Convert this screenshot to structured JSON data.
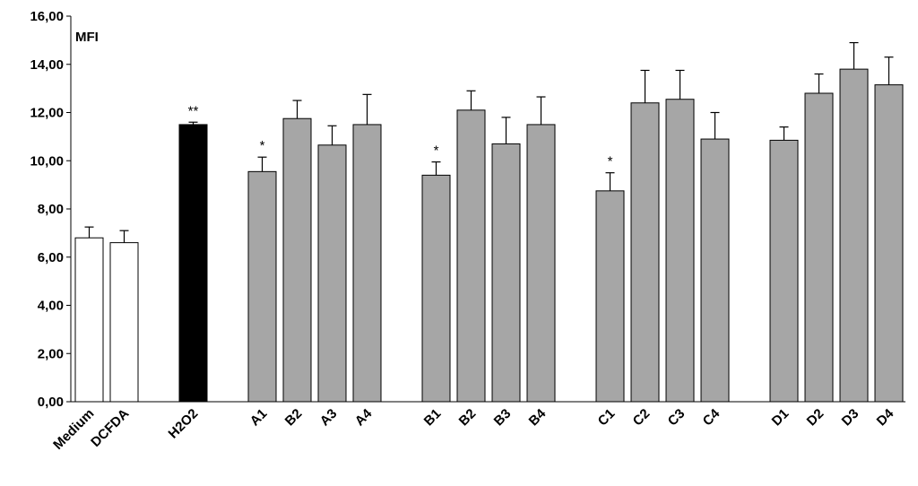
{
  "chart_data": {
    "type": "bar",
    "ylabel": "MFI",
    "ylim": [
      0,
      16
    ],
    "ytick_labels": [
      "0,00",
      "2,00",
      "4,00",
      "6,00",
      "8,00",
      "10,00",
      "12,00",
      "14,00",
      "16,00"
    ],
    "ytick_values": [
      0,
      2,
      4,
      6,
      8,
      10,
      12,
      14,
      16
    ],
    "categories": [
      "Medium",
      "DCFDA",
      "H2O2",
      "A1",
      "B2",
      "A3",
      "A4",
      "B1",
      "B2",
      "B3",
      "B4",
      "C1",
      "C2",
      "C3",
      "C4",
      "D1",
      "D2",
      "D3",
      "D4"
    ],
    "groups": [
      0,
      0,
      1,
      2,
      2,
      2,
      2,
      3,
      3,
      3,
      3,
      4,
      4,
      4,
      4,
      5,
      5,
      5,
      5
    ],
    "values": [
      6.8,
      6.6,
      11.5,
      9.55,
      11.75,
      10.65,
      11.5,
      9.4,
      12.1,
      10.7,
      11.5,
      8.75,
      12.4,
      12.55,
      10.9,
      10.85,
      12.8,
      13.8,
      13.15
    ],
    "errors": [
      0.45,
      0.5,
      0.1,
      0.6,
      0.75,
      0.8,
      1.25,
      0.55,
      0.8,
      1.1,
      1.15,
      0.75,
      1.35,
      1.2,
      1.1,
      0.55,
      0.8,
      1.1,
      1.15
    ],
    "bar_colors": [
      "#ffffff",
      "#ffffff",
      "#000000",
      "#a6a6a6",
      "#a6a6a6",
      "#a6a6a6",
      "#a6a6a6",
      "#a6a6a6",
      "#a6a6a6",
      "#a6a6a6",
      "#a6a6a6",
      "#a6a6a6",
      "#a6a6a6",
      "#a6a6a6",
      "#a6a6a6",
      "#a6a6a6",
      "#a6a6a6",
      "#a6a6a6",
      "#a6a6a6"
    ],
    "annotations": [
      "",
      "",
      "**",
      "*",
      "",
      "",
      "",
      "*",
      "",
      "",
      "",
      "*",
      "",
      "",
      "",
      "",
      "",
      "",
      ""
    ],
    "grid": false,
    "legend": "none"
  }
}
